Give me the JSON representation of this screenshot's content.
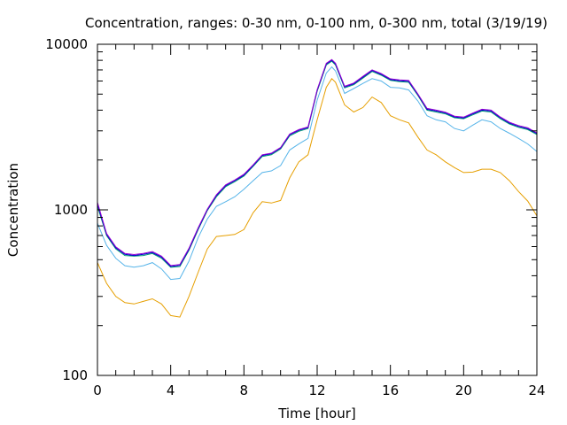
{
  "chart_data": {
    "type": "line",
    "title": "Concentration, ranges: 0-30 nm, 0-100 nm, 0-300 nm, total (3/19/19)",
    "xlabel": "Time [hour]",
    "ylabel": "Concentration",
    "xlim": [
      0,
      24
    ],
    "ylim": [
      100,
      10000
    ],
    "yscale": "log",
    "x_ticks": [
      0,
      4,
      8,
      12,
      16,
      20,
      24
    ],
    "y_ticks": [
      100,
      1000,
      10000
    ],
    "x_tick_labels": [
      "0",
      "4",
      "8",
      "12",
      "16",
      "20",
      "24"
    ],
    "y_tick_labels": [
      "100",
      "1000",
      "10000"
    ],
    "grid": false,
    "legend": "none",
    "x": [
      0,
      0.5,
      1,
      1.5,
      2,
      2.5,
      3,
      3.5,
      4,
      4.5,
      5,
      5.5,
      6,
      6.5,
      7,
      7.5,
      8,
      8.5,
      9,
      9.5,
      10,
      10.5,
      11,
      11.5,
      12,
      12.5,
      12.8,
      13,
      13.5,
      14,
      14.5,
      15,
      15.5,
      16,
      16.5,
      17,
      17.5,
      18,
      18.5,
      19,
      19.5,
      20,
      20.5,
      21,
      21.5,
      22,
      22.5,
      23,
      23.5,
      24
    ],
    "series": [
      {
        "color": "#e69f00",
        "values": [
          480,
          360,
          300,
          275,
          270,
          280,
          290,
          270,
          230,
          225,
          300,
          420,
          580,
          690,
          700,
          710,
          760,
          960,
          1120,
          1100,
          1140,
          1560,
          1950,
          2150,
          3500,
          5500,
          6200,
          5900,
          4300,
          3900,
          4150,
          4800,
          4450,
          3700,
          3500,
          3350,
          2750,
          2300,
          2150,
          1950,
          1800,
          1680,
          1690,
          1760,
          1760,
          1680,
          1500,
          1290,
          1130,
          920
        ]
      },
      {
        "color": "#56b4e9",
        "values": [
          830,
          610,
          510,
          460,
          450,
          460,
          480,
          440,
          380,
          385,
          490,
          680,
          880,
          1050,
          1120,
          1200,
          1330,
          1500,
          1680,
          1720,
          1850,
          2300,
          2500,
          2700,
          4600,
          6700,
          7300,
          6900,
          5050,
          5400,
          5800,
          6200,
          6000,
          5500,
          5450,
          5300,
          4550,
          3700,
          3500,
          3400,
          3100,
          3000,
          3250,
          3500,
          3400,
          3100,
          2900,
          2700,
          2500,
          2250
        ]
      },
      {
        "color": "#009e73",
        "values": [
          1050,
          700,
          580,
          530,
          525,
          530,
          545,
          510,
          450,
          455,
          570,
          760,
          990,
          1200,
          1380,
          1480,
          1600,
          1830,
          2100,
          2150,
          2330,
          2800,
          2980,
          3100,
          5200,
          7500,
          7900,
          7500,
          5450,
          5700,
          6250,
          6850,
          6500,
          6050,
          5950,
          5900,
          4900,
          4000,
          3900,
          3800,
          3600,
          3550,
          3750,
          3950,
          3900,
          3550,
          3300,
          3150,
          3050,
          2850
        ]
      },
      {
        "color": "#0000cc",
        "values": [
          1080,
          710,
          590,
          538,
          530,
          538,
          552,
          518,
          455,
          462,
          578,
          770,
          1000,
          1220,
          1400,
          1500,
          1620,
          1850,
          2130,
          2180,
          2360,
          2840,
          3020,
          3140,
          5270,
          7600,
          8000,
          7600,
          5520,
          5770,
          6330,
          6940,
          6580,
          6120,
          6020,
          5970,
          4960,
          4050,
          3950,
          3850,
          3640,
          3590,
          3800,
          4000,
          3950,
          3600,
          3340,
          3190,
          3090,
          2890
        ]
      },
      {
        "color": "#9400d3",
        "values": [
          1110,
          720,
          598,
          545,
          537,
          545,
          560,
          525,
          461,
          468,
          586,
          780,
          1010,
          1235,
          1415,
          1515,
          1640,
          1870,
          2150,
          2200,
          2380,
          2870,
          3050,
          3170,
          5320,
          7680,
          8080,
          7680,
          5580,
          5830,
          6400,
          7010,
          6650,
          6190,
          6090,
          6040,
          5010,
          4100,
          4000,
          3890,
          3680,
          3630,
          3840,
          4050,
          4000,
          3640,
          3380,
          3230,
          3130,
          2920
        ]
      }
    ]
  }
}
